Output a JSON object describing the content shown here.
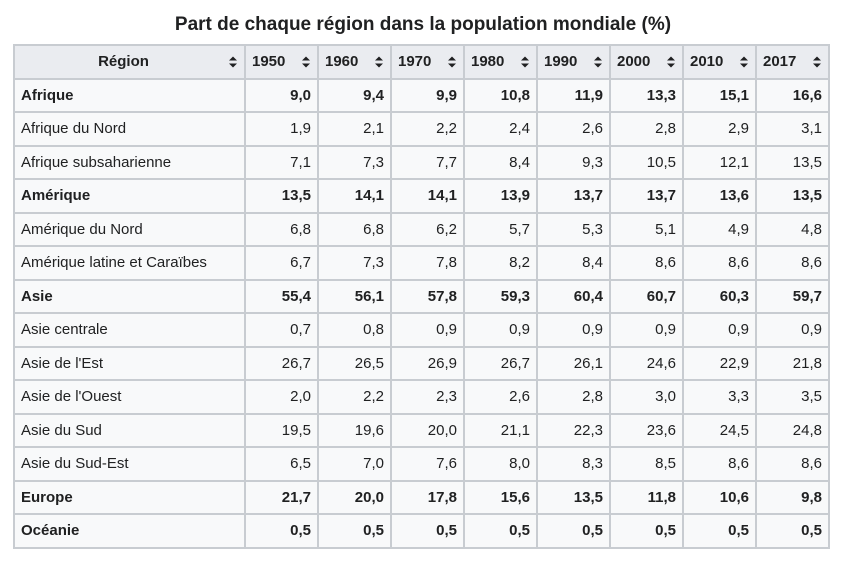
{
  "caption": "Part de chaque région dans la population mondiale (%)",
  "columns": [
    "Région",
    "1950",
    "1960",
    "1970",
    "1980",
    "1990",
    "2000",
    "2010",
    "2017"
  ],
  "rows": [
    {
      "region": "Afrique",
      "bold": true,
      "values": [
        "9,0",
        "9,4",
        "9,9",
        "10,8",
        "11,9",
        "13,3",
        "15,1",
        "16,6"
      ]
    },
    {
      "region": "Afrique du Nord",
      "bold": false,
      "values": [
        "1,9",
        "2,1",
        "2,2",
        "2,4",
        "2,6",
        "2,8",
        "2,9",
        "3,1"
      ]
    },
    {
      "region": "Afrique subsaharienne",
      "bold": false,
      "values": [
        "7,1",
        "7,3",
        "7,7",
        "8,4",
        "9,3",
        "10,5",
        "12,1",
        "13,5"
      ]
    },
    {
      "region": "Amérique",
      "bold": true,
      "values": [
        "13,5",
        "14,1",
        "14,1",
        "13,9",
        "13,7",
        "13,7",
        "13,6",
        "13,5"
      ]
    },
    {
      "region": "Amérique du Nord",
      "bold": false,
      "values": [
        "6,8",
        "6,8",
        "6,2",
        "5,7",
        "5,3",
        "5,1",
        "4,9",
        "4,8"
      ]
    },
    {
      "region": "Amérique latine et Caraïbes",
      "bold": false,
      "values": [
        "6,7",
        "7,3",
        "7,8",
        "8,2",
        "8,4",
        "8,6",
        "8,6",
        "8,6"
      ]
    },
    {
      "region": "Asie",
      "bold": true,
      "values": [
        "55,4",
        "56,1",
        "57,8",
        "59,3",
        "60,4",
        "60,7",
        "60,3",
        "59,7"
      ]
    },
    {
      "region": "Asie centrale",
      "bold": false,
      "values": [
        "0,7",
        "0,8",
        "0,9",
        "0,9",
        "0,9",
        "0,9",
        "0,9",
        "0,9"
      ]
    },
    {
      "region": "Asie de l'Est",
      "bold": false,
      "values": [
        "26,7",
        "26,5",
        "26,9",
        "26,7",
        "26,1",
        "24,6",
        "22,9",
        "21,8"
      ]
    },
    {
      "region": "Asie de l'Ouest",
      "bold": false,
      "values": [
        "2,0",
        "2,2",
        "2,3",
        "2,6",
        "2,8",
        "3,0",
        "3,3",
        "3,5"
      ]
    },
    {
      "region": "Asie du Sud",
      "bold": false,
      "values": [
        "19,5",
        "19,6",
        "20,0",
        "21,1",
        "22,3",
        "23,6",
        "24,5",
        "24,8"
      ]
    },
    {
      "region": "Asie du Sud-Est",
      "bold": false,
      "values": [
        "6,5",
        "7,0",
        "7,6",
        "8,0",
        "8,3",
        "8,5",
        "8,6",
        "8,6"
      ]
    },
    {
      "region": "Europe",
      "bold": true,
      "values": [
        "21,7",
        "20,0",
        "17,8",
        "15,6",
        "13,5",
        "11,8",
        "10,6",
        "9,8"
      ]
    },
    {
      "region": "Océanie",
      "bold": true,
      "values": [
        "0,5",
        "0,5",
        "0,5",
        "0,5",
        "0,5",
        "0,5",
        "0,5",
        "0,5"
      ]
    }
  ]
}
